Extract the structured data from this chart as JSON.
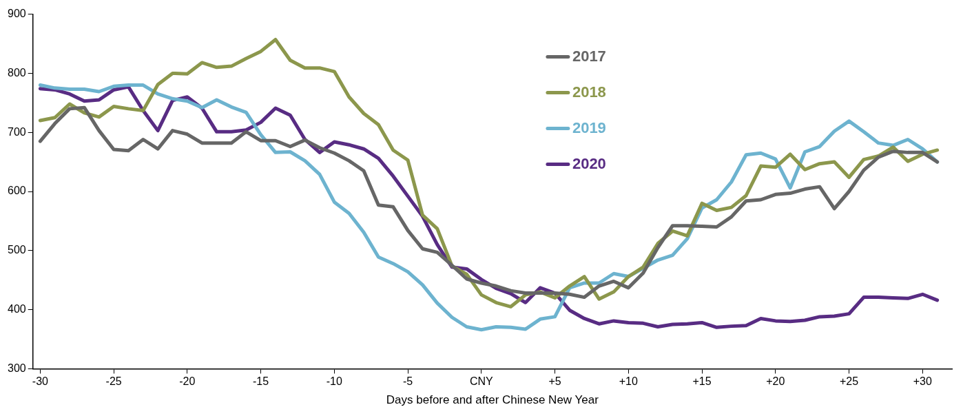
{
  "chart_data": {
    "type": "line",
    "xlabel": "Days before and after Chinese New Year",
    "x": [
      -30,
      -29,
      -28,
      -27,
      -26,
      -25,
      -24,
      -23,
      -22,
      -21,
      -20,
      -19,
      -18,
      -17,
      -16,
      -15,
      -14,
      -13,
      -12,
      -11,
      -10,
      -9,
      -8,
      -7,
      -6,
      -5,
      -4,
      -3,
      -2,
      -1,
      0,
      1,
      2,
      3,
      4,
      5,
      6,
      7,
      8,
      9,
      10,
      11,
      12,
      13,
      14,
      15,
      16,
      17,
      18,
      19,
      20,
      21,
      22,
      23,
      24,
      25,
      26,
      27,
      28,
      29,
      30,
      31
    ],
    "series": [
      {
        "name": "2017",
        "color": "#666666",
        "values": [
          685,
          715,
          740,
          742,
          703,
          671,
          669,
          688,
          672,
          703,
          697,
          682,
          682,
          682,
          701,
          686,
          686,
          676,
          687,
          674,
          665,
          652,
          635,
          577,
          574,
          534,
          503,
          497,
          475,
          452,
          445,
          440,
          432,
          428,
          428,
          428,
          426,
          421,
          440,
          448,
          437,
          462,
          505,
          542,
          542,
          541,
          540,
          557,
          584,
          586,
          595,
          597,
          604,
          608,
          571,
          600,
          636,
          658,
          668,
          666,
          666,
          650
        ]
      },
      {
        "name": "2018",
        "color": "#8c974c",
        "values": [
          720,
          725,
          748,
          733,
          726,
          744,
          740,
          737,
          781,
          800,
          799,
          818,
          810,
          812,
          825,
          837,
          857,
          822,
          809,
          809,
          803,
          760,
          732,
          713,
          670,
          653,
          560,
          537,
          474,
          460,
          425,
          412,
          405,
          425,
          430,
          420,
          440,
          456,
          418,
          430,
          456,
          472,
          512,
          533,
          525,
          580,
          568,
          573,
          593,
          643,
          641,
          663,
          637,
          647,
          650,
          624,
          654,
          660,
          675,
          651,
          663,
          670
        ]
      },
      {
        "name": "2019",
        "color": "#6db3cf",
        "values": [
          780,
          775,
          773,
          773,
          769,
          778,
          780,
          780,
          765,
          757,
          753,
          742,
          755,
          743,
          734,
          696,
          666,
          667,
          652,
          629,
          582,
          563,
          531,
          489,
          478,
          464,
          442,
          411,
          387,
          371,
          366,
          371,
          370,
          367,
          384,
          388,
          437,
          445,
          445,
          461,
          456,
          470,
          484,
          492,
          520,
          572,
          586,
          616,
          662,
          665,
          655,
          606,
          667,
          676,
          702,
          719,
          701,
          682,
          678,
          688,
          672,
          650
        ]
      },
      {
        "name": "2020",
        "color": "#582c83",
        "values": [
          774,
          772,
          765,
          753,
          755,
          772,
          777,
          737,
          703,
          754,
          760,
          741,
          701,
          701,
          704,
          717,
          741,
          729,
          688,
          666,
          684,
          679,
          672,
          656,
          626,
          592,
          558,
          510,
          472,
          469,
          451,
          436,
          427,
          412,
          437,
          428,
          399,
          385,
          376,
          381,
          378,
          377,
          371,
          375,
          376,
          378,
          370,
          372,
          373,
          385,
          381,
          380,
          382,
          388,
          389,
          393,
          421,
          421,
          420,
          419,
          426,
          416
        ]
      }
    ],
    "xlim": [
      -30.5,
      32
    ],
    "xticks": [
      -30,
      -25,
      -20,
      -15,
      -10,
      -5,
      {
        "value": 0,
        "label": "CNY"
      },
      {
        "value": 5,
        "label": "+5"
      },
      {
        "value": 10,
        "label": "+10"
      },
      {
        "value": 15,
        "label": "+15"
      },
      {
        "value": 20,
        "label": "+20"
      },
      {
        "value": 25,
        "label": "+25"
      },
      {
        "value": 30,
        "label": "+30"
      }
    ],
    "ylim": [
      300,
      900
    ],
    "yticks": [
      300,
      400,
      500,
      600,
      700,
      800,
      900
    ],
    "grid": false,
    "legend": "top",
    "marker": "none",
    "line_style": "solid"
  }
}
